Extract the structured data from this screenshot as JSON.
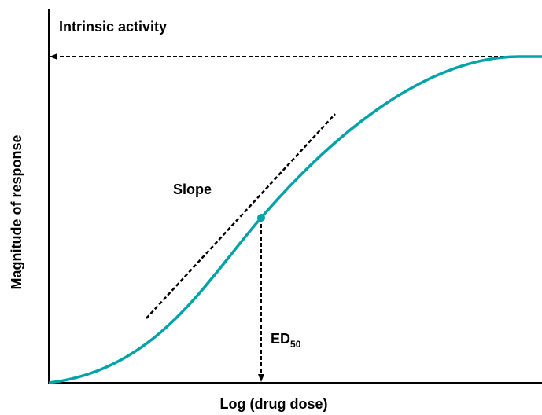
{
  "labels": {
    "intrinsic_activity": "Intrinsic activity",
    "slope": "Slope",
    "ed": "ED",
    "ed_subscript": "50",
    "y_axis": "Magnitude of response",
    "x_axis": "Log (drug dose)"
  }
}
